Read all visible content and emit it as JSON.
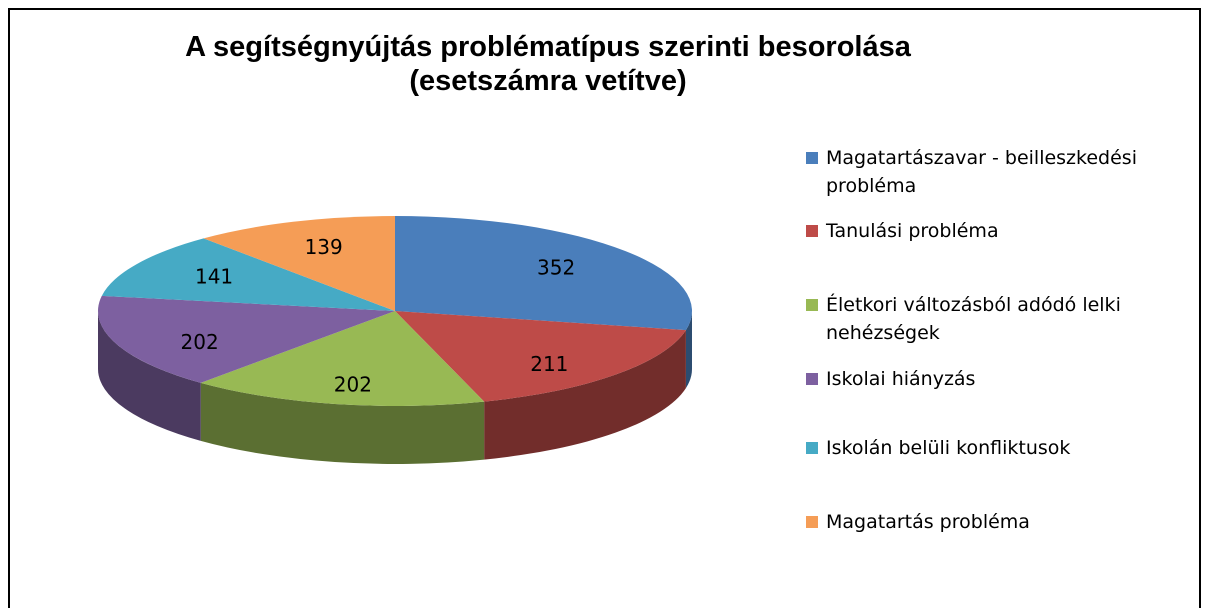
{
  "chart_data": {
    "type": "pie",
    "title": "A segítségnyújtás problématípus szerinti besorolása (esetszámra vetítve)",
    "categories": [
      "Magatartászavar - beilleszkedési probléma",
      "Tanulási probléma",
      "Életkori változásból adódó lelki nehézségek",
      "Iskolai hiányzás",
      "Iskolán belüli konfliktusok",
      "Magatartás probléma"
    ],
    "values": [
      352,
      211,
      202,
      202,
      141,
      139
    ],
    "colors": [
      "#4a7ebb",
      "#be4b48",
      "#98b954",
      "#7d60a0",
      "#46aac5",
      "#f59d56"
    ],
    "legend": "right"
  }
}
